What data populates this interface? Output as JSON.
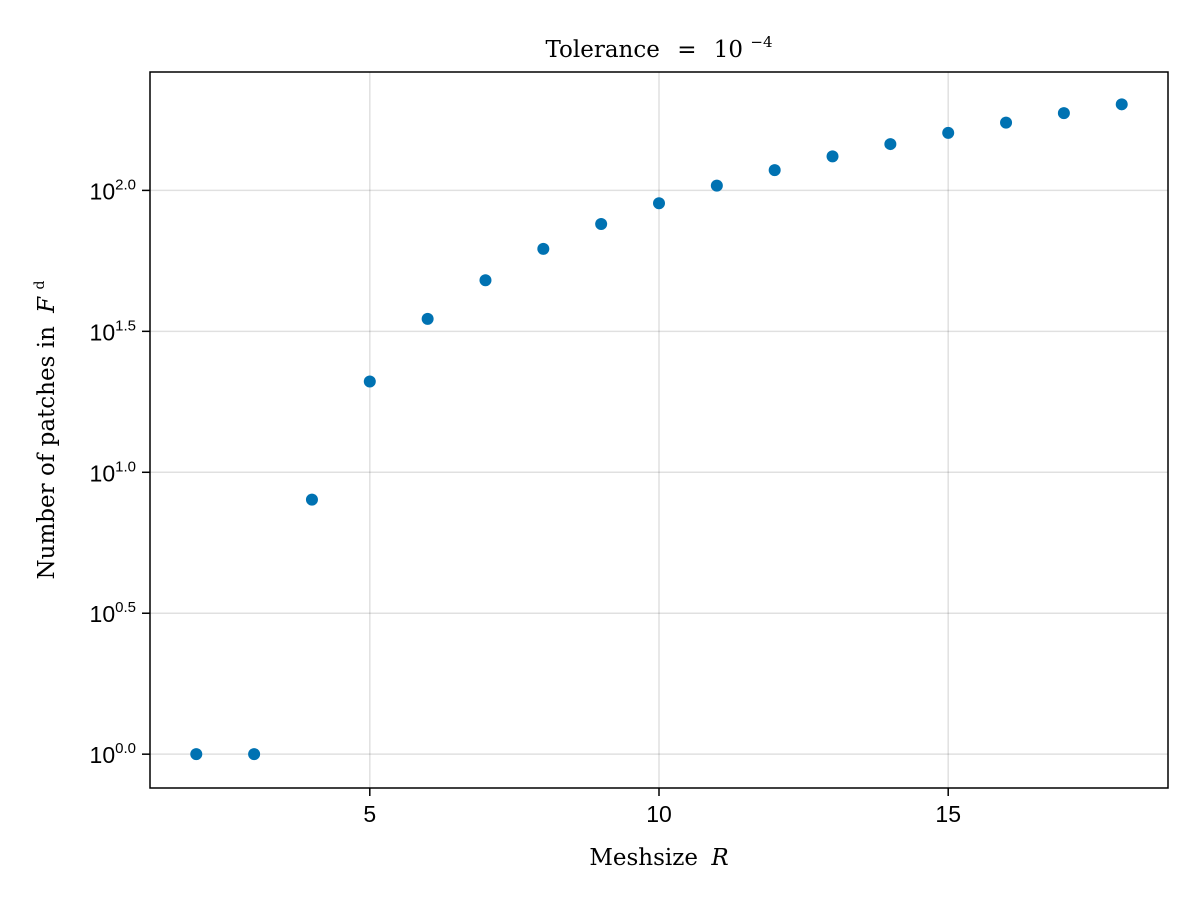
{
  "chart_data": {
    "type": "scatter",
    "title": {
      "prefix": "Tolerance",
      "equals": "=",
      "base": "10",
      "exponent": "−4"
    },
    "xlabel": {
      "text": "Meshsize",
      "var": "R"
    },
    "ylabel": {
      "text": "Number of patches in",
      "var": "F",
      "sup": "d"
    },
    "x_scale": "linear",
    "y_scale": "log10",
    "xlim": [
      1.2,
      18.8
    ],
    "ylim_log10": [
      -0.12,
      2.42
    ],
    "x_ticks": [
      {
        "value": 5,
        "label": "5"
      },
      {
        "value": 10,
        "label": "10"
      },
      {
        "value": 15,
        "label": "15"
      }
    ],
    "y_ticks": [
      {
        "exp": 0.0,
        "base": "10",
        "sup": "0.0"
      },
      {
        "exp": 0.5,
        "base": "10",
        "sup": "0.5"
      },
      {
        "exp": 1.0,
        "base": "10",
        "sup": "1.0"
      },
      {
        "exp": 1.5,
        "base": "10",
        "sup": "1.5"
      },
      {
        "exp": 2.0,
        "base": "10",
        "sup": "2.0"
      }
    ],
    "grid": true,
    "marker_color": "#0072b2",
    "points": [
      {
        "x": 2,
        "y": 1
      },
      {
        "x": 3,
        "y": 1
      },
      {
        "x": 4,
        "y": 8
      },
      {
        "x": 5,
        "y": 21
      },
      {
        "x": 6,
        "y": 35
      },
      {
        "x": 7,
        "y": 48
      },
      {
        "x": 8,
        "y": 62
      },
      {
        "x": 9,
        "y": 76
      },
      {
        "x": 10,
        "y": 90
      },
      {
        "x": 11,
        "y": 104
      },
      {
        "x": 12,
        "y": 118
      },
      {
        "x": 13,
        "y": 132
      },
      {
        "x": 14,
        "y": 146
      },
      {
        "x": 15,
        "y": 160
      },
      {
        "x": 16,
        "y": 174
      },
      {
        "x": 17,
        "y": 188
      },
      {
        "x": 18,
        "y": 202
      }
    ]
  }
}
